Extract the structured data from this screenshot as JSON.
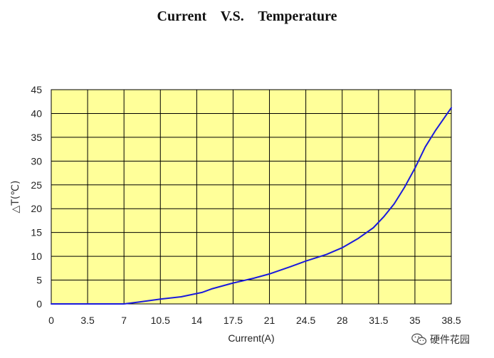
{
  "chart_data": {
    "type": "line",
    "title": "Current    V.S.    Temperature",
    "xlabel": "Current(A)",
    "ylabel": "△T(℃)",
    "xlim": [
      0,
      38.5
    ],
    "ylim": [
      0,
      45
    ],
    "xticks": [
      "0",
      "3.5",
      "7",
      "10.5",
      "14",
      "17.5",
      "21",
      "24.5",
      "28",
      "31.5",
      "35",
      "38.5"
    ],
    "yticks": [
      "0",
      "5",
      "10",
      "15",
      "20",
      "25",
      "30",
      "35",
      "40",
      "45"
    ],
    "grid": true,
    "series": [
      {
        "x": [
          0,
          3.5,
          7,
          8.5,
          10.5,
          12.5,
          14.5,
          15.5,
          17.5,
          19.5,
          21,
          23,
          24.5,
          26.5,
          28,
          29.5,
          31,
          32,
          33,
          34,
          35,
          36,
          37,
          38.5
        ],
        "y": [
          0,
          0,
          0,
          0.4,
          1.0,
          1.5,
          2.4,
          3.2,
          4.4,
          5.4,
          6.3,
          7.8,
          9.0,
          10.4,
          11.8,
          13.7,
          16.0,
          18.3,
          21.0,
          24.5,
          28.5,
          33.0,
          36.5,
          41.2
        ]
      }
    ]
  },
  "colors": {
    "plot_background": "#ffff99",
    "grid": "#000000",
    "line": "#1a1adc"
  },
  "watermark": {
    "text": "硬件花园",
    "icon": "wechat-icon"
  }
}
